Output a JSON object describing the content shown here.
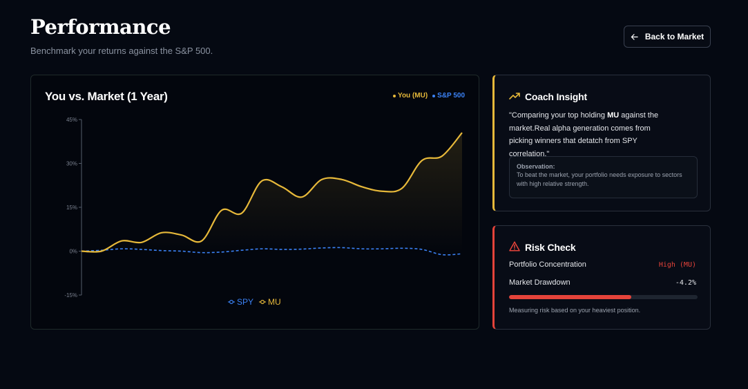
{
  "header": {
    "title": "Performance",
    "subtitle": "Benchmark your returns against the S&P 500.",
    "back_label": "Back to Market"
  },
  "chart_card": {
    "title": "You vs. Market (1 Year)",
    "legend_top": [
      {
        "label": "You (MU)",
        "color": "#e7b93a"
      },
      {
        "label": "S&P 500",
        "color": "#3b82f6"
      }
    ],
    "legend_bottom": [
      {
        "label": "SPY",
        "color": "#3b82f6"
      },
      {
        "label": "MU",
        "color": "#e7b93a"
      }
    ]
  },
  "chart_data": {
    "type": "line",
    "ylim": [
      -15,
      45
    ],
    "yticks": [
      -15,
      0,
      15,
      30,
      45
    ],
    "ytick_labels": [
      "-15%",
      "0%",
      "15%",
      "30%",
      "45%"
    ],
    "grid": false,
    "legend_placement": "bottom",
    "series": [
      {
        "name": "MU",
        "color": "#e7b93a",
        "style": "solid-area",
        "values": [
          0,
          0,
          3.5,
          3,
          6.3,
          5.5,
          3.5,
          14,
          13,
          24,
          22,
          18.5,
          24.5,
          24.5,
          22,
          20.5,
          21.5,
          31,
          32.5,
          40.5
        ]
      },
      {
        "name": "SPY",
        "color": "#3b82f6",
        "style": "dashed",
        "values": [
          0,
          0.3,
          0.8,
          0.6,
          0.2,
          0,
          -0.5,
          -0.3,
          0.3,
          0.8,
          0.6,
          0.7,
          1.1,
          1.2,
          0.8,
          0.8,
          1.0,
          0.6,
          -1.2,
          -0.9
        ]
      }
    ]
  },
  "coach": {
    "title": "Coach Insight",
    "quote_pre": "\"Comparing your top holding ",
    "quote_bold": "MU",
    "quote_post": " against the market.Real alpha generation comes from picking winners that detatch from SPY correlation.\"",
    "obs_label": "Observation:",
    "obs_text": "To beat the market, your portfolio needs exposure to sectors with high relative strength.",
    "accent": "#e7b93a"
  },
  "risk": {
    "title": "Risk Check",
    "concentration_label": "Portfolio Concentration",
    "concentration_value": "High (MU)",
    "drawdown_label": "Market Drawdown",
    "drawdown_value": "-4.2%",
    "bar_fraction": 0.65,
    "note": "Measuring risk based on your heaviest position.",
    "accent": "#e5433a"
  }
}
